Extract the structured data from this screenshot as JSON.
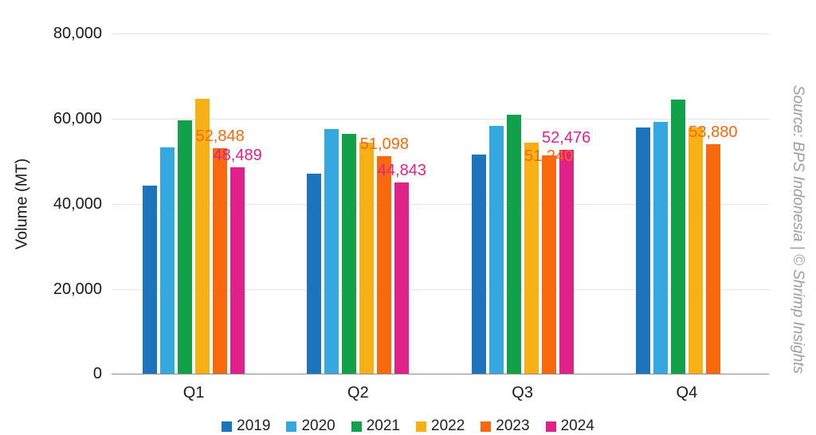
{
  "source_text": "Source: BPS Indonesia | © Shrimp Insights",
  "chart_data": {
    "type": "bar",
    "title": "",
    "xlabel": "",
    "ylabel": "Volume (MT)",
    "ylim": [
      0,
      80000
    ],
    "yticks": [
      0,
      20000,
      40000,
      60000,
      80000
    ],
    "grid": true,
    "legend_position": "bottom",
    "categories": [
      "Q1",
      "Q2",
      "Q3",
      "Q4"
    ],
    "series": [
      {
        "name": "2019",
        "color": "#1c75bc",
        "values": [
          44100,
          47000,
          51400,
          57700
        ],
        "labels": [
          null,
          null,
          null,
          null
        ]
      },
      {
        "name": "2020",
        "color": "#35a8e0",
        "values": [
          53000,
          57300,
          58200,
          59100
        ],
        "labels": [
          null,
          null,
          null,
          null
        ]
      },
      {
        "name": "2021",
        "color": "#12a04b",
        "values": [
          59400,
          56200,
          60800,
          64300
        ],
        "labels": [
          null,
          null,
          null,
          null
        ]
      },
      {
        "name": "2022",
        "color": "#f7b015",
        "values": [
          64500,
          54200,
          54300,
          57800
        ],
        "labels": [
          null,
          null,
          null,
          null
        ]
      },
      {
        "name": "2023",
        "color": "#f8690e",
        "values": [
          52848,
          51098,
          51240,
          53880
        ],
        "labels": [
          "52,848",
          "51,098",
          "51,240",
          "53,880"
        ]
      },
      {
        "name": "2024",
        "color": "#e0218a",
        "values": [
          48489,
          44843,
          52476,
          null
        ],
        "labels": [
          "48,489",
          "44,843",
          "52,476",
          null
        ]
      }
    ]
  }
}
